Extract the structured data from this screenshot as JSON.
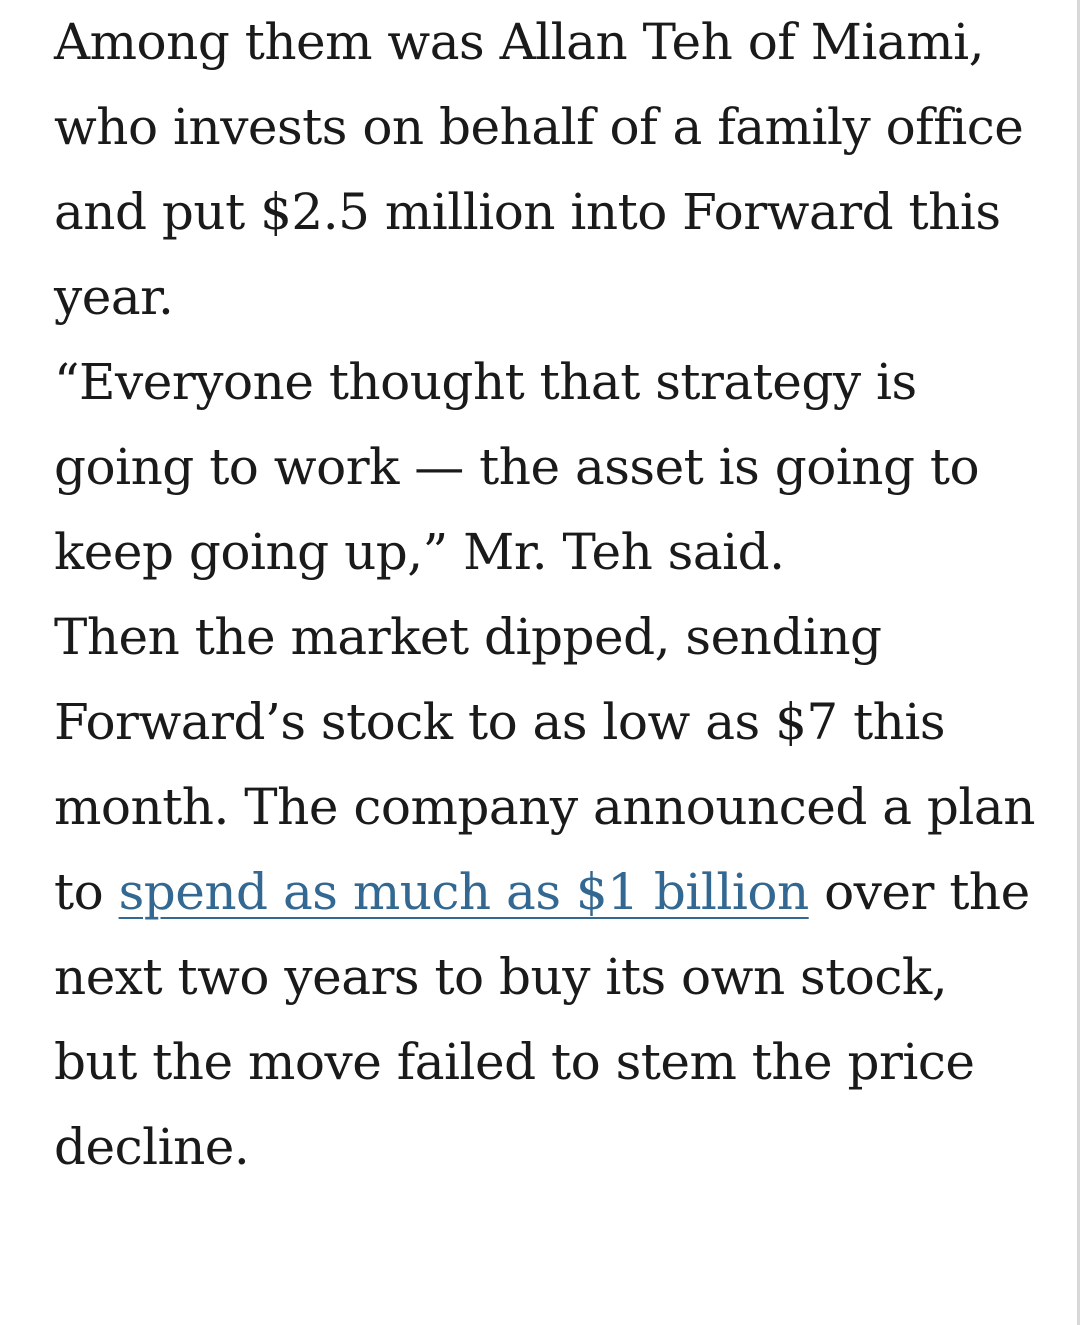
{
  "article": {
    "paragraph_1": "Among them was Allan Teh of Miami, who invests on behalf of a family office and put $2.5 million into Forward this year.",
    "paragraph_2": "“Everyone thought that strategy is going to work — the asset is going to keep going up,” Mr. Teh said.",
    "paragraph_3": {
      "before_link": "Then the market dipped, sending Forward’s stock to as low as $7 this month. The company announced a plan to ",
      "link_text": "spend as much as $1 billion",
      "after_link": " over the next two years to buy its own stock, but the move failed to stem the price decline."
    }
  },
  "colors": {
    "text": "#1a1a1a",
    "link": "#326891",
    "background": "#ffffff"
  }
}
